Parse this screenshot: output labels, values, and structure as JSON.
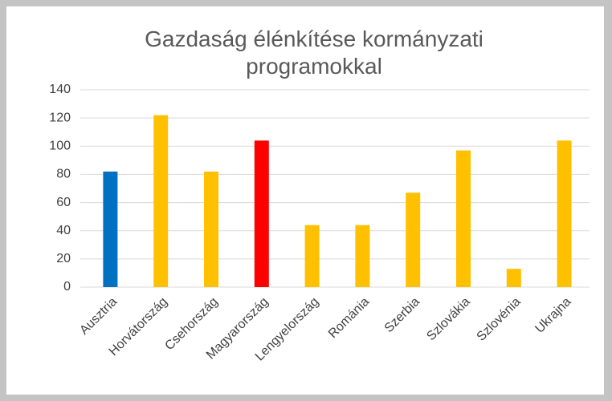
{
  "chart_data": {
    "type": "bar",
    "title": "Gazdaság élénkítése kormányzati programokkal",
    "categories": [
      "Ausztria",
      "Horvátország",
      "Csehország",
      "Magyarország",
      "Lengyelország",
      "Románia",
      "Szerbia",
      "Szlovákia",
      "Szlovénia",
      "Ukrajna"
    ],
    "values": [
      82,
      122,
      82,
      104,
      44,
      44,
      67,
      97,
      13,
      104
    ],
    "colors": [
      "#0070c0",
      "#ffc000",
      "#ffc000",
      "#ff0000",
      "#ffc000",
      "#ffc000",
      "#ffc000",
      "#ffc000",
      "#ffc000",
      "#ffc000"
    ],
    "ylim": [
      0,
      140
    ],
    "yticks": [
      0,
      20,
      40,
      60,
      80,
      100,
      120,
      140
    ],
    "grid": true
  }
}
